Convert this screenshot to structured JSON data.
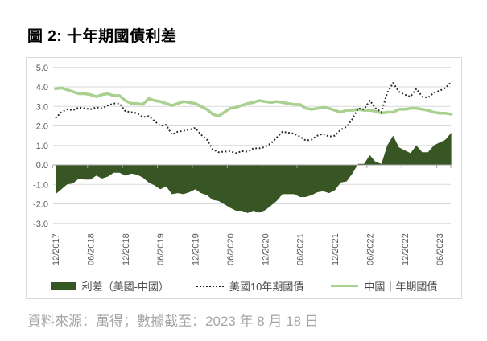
{
  "title": "圖 2: 十年期國債利差",
  "source": "資料來源：萬得；數據截至：2023 年 8 月 18 日",
  "colors": {
    "spread": "#375623",
    "us": "#262626",
    "china": "#a9d08e",
    "grid": "#d9d9d9",
    "axis_line": "#a6a6a6",
    "axis_text": "#595959",
    "box_border": "#d9d9d9",
    "legend_text": "#4a4a4a",
    "source_text": "#a6a6a6",
    "title_text": "#000000"
  },
  "legend": [
    {
      "label": "利差（美國-中國）",
      "swatch": "area",
      "color": "#375623"
    },
    {
      "label": "美國10年期國債",
      "swatch": "dotted",
      "color": "#262626"
    },
    {
      "label": "中國十年期國債",
      "swatch": "line",
      "color": "#a9d08e"
    }
  ],
  "chart_data": {
    "type": "line",
    "title": "十年期國債利差",
    "xlabel": "",
    "ylabel": "",
    "ylim": [
      -3.0,
      5.0
    ],
    "grid": true,
    "legend_position": "bottom",
    "y_ticks": [
      "5.0",
      "4.0",
      "3.0",
      "2.0",
      "1.0",
      "0.0",
      "-1.0",
      "-2.0",
      "-3.0"
    ],
    "x_ticks": [
      {
        "i": 0,
        "label": "12/2017"
      },
      {
        "i": 6,
        "label": "06/2018"
      },
      {
        "i": 12,
        "label": "12/2018"
      },
      {
        "i": 18,
        "label": "06/2019"
      },
      {
        "i": 24,
        "label": "12/2019"
      },
      {
        "i": 30,
        "label": "06/2020"
      },
      {
        "i": 36,
        "label": "12/2020"
      },
      {
        "i": 42,
        "label": "06/2021"
      },
      {
        "i": 48,
        "label": "12/2021"
      },
      {
        "i": 54,
        "label": "06/2022"
      },
      {
        "i": 60,
        "label": "12/2022"
      },
      {
        "i": 66,
        "label": "06/2023"
      }
    ],
    "months": [
      "2017-12",
      "2018-01",
      "2018-02",
      "2018-03",
      "2018-04",
      "2018-05",
      "2018-06",
      "2018-07",
      "2018-08",
      "2018-09",
      "2018-10",
      "2018-11",
      "2018-12",
      "2019-01",
      "2019-02",
      "2019-03",
      "2019-04",
      "2019-05",
      "2019-06",
      "2019-07",
      "2019-08",
      "2019-09",
      "2019-10",
      "2019-11",
      "2019-12",
      "2020-01",
      "2020-02",
      "2020-03",
      "2020-04",
      "2020-05",
      "2020-06",
      "2020-07",
      "2020-08",
      "2020-09",
      "2020-10",
      "2020-11",
      "2020-12",
      "2021-01",
      "2021-02",
      "2021-03",
      "2021-04",
      "2021-05",
      "2021-06",
      "2021-07",
      "2021-08",
      "2021-09",
      "2021-10",
      "2021-11",
      "2021-12",
      "2022-01",
      "2022-02",
      "2022-03",
      "2022-04",
      "2022-05",
      "2022-06",
      "2022-07",
      "2022-08",
      "2022-09",
      "2022-10",
      "2022-11",
      "2022-12",
      "2023-01",
      "2023-02",
      "2023-03",
      "2023-04",
      "2023-05",
      "2023-06",
      "2023-07",
      "2023-08"
    ],
    "series": [
      {
        "name": "利差（美國-中國）",
        "type": "area",
        "color": "#375623",
        "values": [
          -1.5,
          -1.25,
          -1.0,
          -0.95,
          -0.7,
          -0.75,
          -0.75,
          -0.55,
          -0.7,
          -0.6,
          -0.4,
          -0.4,
          -0.55,
          -0.45,
          -0.5,
          -0.65,
          -0.9,
          -1.05,
          -1.25,
          -1.1,
          -1.5,
          -1.45,
          -1.5,
          -1.4,
          -1.25,
          -1.45,
          -1.55,
          -1.8,
          -1.85,
          -2.02,
          -2.2,
          -2.35,
          -2.35,
          -2.47,
          -2.35,
          -2.45,
          -2.33,
          -2.1,
          -1.85,
          -1.5,
          -1.5,
          -1.5,
          -1.65,
          -1.65,
          -1.55,
          -1.4,
          -1.35,
          -1.45,
          -1.3,
          -0.9,
          -0.85,
          -0.45,
          0.05,
          0.05,
          0.5,
          0.15,
          0.05,
          1.0,
          1.5,
          0.9,
          0.75,
          0.6,
          1.0,
          0.65,
          0.65,
          1.0,
          1.15,
          1.3,
          1.65
        ]
      },
      {
        "name": "美國10年期國債",
        "type": "dotted-line",
        "color": "#262626",
        "values": [
          2.4,
          2.7,
          2.85,
          2.8,
          2.95,
          2.9,
          2.85,
          2.95,
          2.9,
          3.05,
          3.15,
          3.15,
          2.75,
          2.7,
          2.65,
          2.45,
          2.5,
          2.25,
          2.0,
          2.05,
          1.55,
          1.7,
          1.75,
          1.8,
          1.9,
          1.55,
          1.3,
          0.8,
          0.65,
          0.68,
          0.7,
          0.6,
          0.7,
          0.68,
          0.85,
          0.85,
          0.92,
          1.1,
          1.4,
          1.7,
          1.65,
          1.6,
          1.45,
          1.25,
          1.3,
          1.5,
          1.6,
          1.45,
          1.5,
          1.8,
          1.95,
          2.35,
          2.9,
          2.85,
          3.3,
          2.9,
          2.7,
          3.7,
          4.2,
          3.75,
          3.6,
          3.5,
          3.9,
          3.5,
          3.45,
          3.7,
          3.8,
          3.95,
          4.25
        ]
      },
      {
        "name": "中國十年期國債",
        "type": "line",
        "color": "#a9d08e",
        "values": [
          3.9,
          3.95,
          3.85,
          3.75,
          3.65,
          3.65,
          3.6,
          3.5,
          3.6,
          3.65,
          3.55,
          3.55,
          3.3,
          3.15,
          3.15,
          3.1,
          3.4,
          3.3,
          3.25,
          3.15,
          3.05,
          3.15,
          3.25,
          3.2,
          3.15,
          3.0,
          2.85,
          2.6,
          2.5,
          2.7,
          2.9,
          2.95,
          3.05,
          3.15,
          3.2,
          3.3,
          3.25,
          3.2,
          3.25,
          3.2,
          3.15,
          3.1,
          3.1,
          2.9,
          2.85,
          2.9,
          2.95,
          2.9,
          2.8,
          2.7,
          2.8,
          2.8,
          2.85,
          2.8,
          2.8,
          2.75,
          2.65,
          2.7,
          2.7,
          2.85,
          2.85,
          2.9,
          2.9,
          2.85,
          2.8,
          2.7,
          2.65,
          2.65,
          2.6
        ]
      }
    ]
  }
}
